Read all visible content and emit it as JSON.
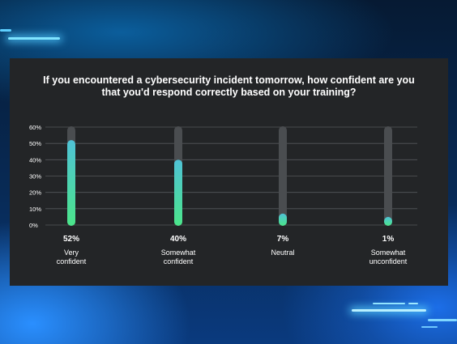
{
  "chart_data": {
    "type": "bar",
    "title": "If you encountered a cybersecurity incident tomorrow, how confident are you that you'd respond correctly based on your training?",
    "categories": [
      [
        "Very",
        "confident"
      ],
      [
        "Somewhat",
        "confident"
      ],
      [
        "Neutral"
      ],
      [
        "Somewhat",
        "unconfident"
      ]
    ],
    "values": [
      52,
      40,
      7,
      1
    ],
    "value_labels": [
      "52%",
      "40%",
      "7%",
      "1%"
    ],
    "y_ticks": [
      "0%",
      "10%",
      "20%",
      "30%",
      "40%",
      "50%",
      "60%"
    ],
    "ylim": [
      0,
      60
    ],
    "grid": true,
    "colors": {
      "bar_top": "#4fc2d6",
      "bar_bottom": "#4be58a",
      "track": "#4a4d50",
      "grid": "#55585b",
      "text": "#ffffff",
      "panel": "#232527"
    }
  }
}
